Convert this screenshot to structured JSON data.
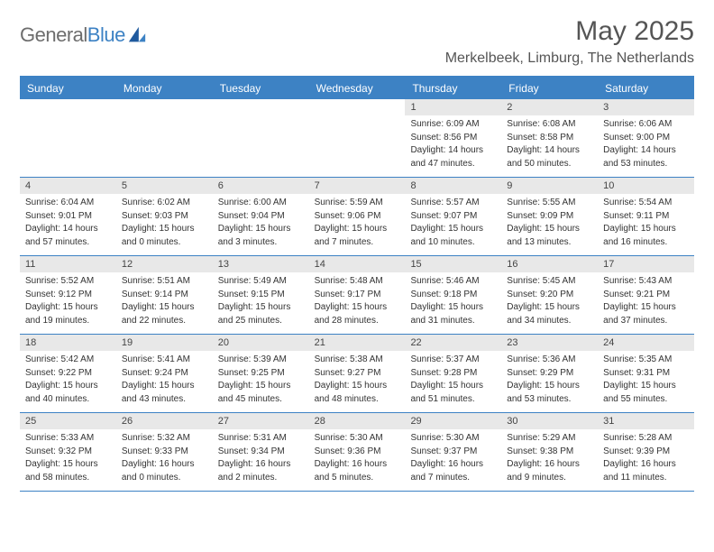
{
  "brand": {
    "name_a": "General",
    "name_b": "Blue"
  },
  "header": {
    "month_title": "May 2025",
    "location": "Merkelbeek, Limburg, The Netherlands"
  },
  "weekdays": [
    "Sunday",
    "Monday",
    "Tuesday",
    "Wednesday",
    "Thursday",
    "Friday",
    "Saturday"
  ],
  "colors": {
    "accent": "#3d82c4",
    "daynum_bg": "#e8e8e8",
    "text": "#333333",
    "muted": "#555555"
  },
  "weeks": [
    [
      {
        "day": "",
        "sunrise": "",
        "sunset": "",
        "dl1": "",
        "dl2": ""
      },
      {
        "day": "",
        "sunrise": "",
        "sunset": "",
        "dl1": "",
        "dl2": ""
      },
      {
        "day": "",
        "sunrise": "",
        "sunset": "",
        "dl1": "",
        "dl2": ""
      },
      {
        "day": "",
        "sunrise": "",
        "sunset": "",
        "dl1": "",
        "dl2": ""
      },
      {
        "day": "1",
        "sunrise": "Sunrise: 6:09 AM",
        "sunset": "Sunset: 8:56 PM",
        "dl1": "Daylight: 14 hours",
        "dl2": "and 47 minutes."
      },
      {
        "day": "2",
        "sunrise": "Sunrise: 6:08 AM",
        "sunset": "Sunset: 8:58 PM",
        "dl1": "Daylight: 14 hours",
        "dl2": "and 50 minutes."
      },
      {
        "day": "3",
        "sunrise": "Sunrise: 6:06 AM",
        "sunset": "Sunset: 9:00 PM",
        "dl1": "Daylight: 14 hours",
        "dl2": "and 53 minutes."
      }
    ],
    [
      {
        "day": "4",
        "sunrise": "Sunrise: 6:04 AM",
        "sunset": "Sunset: 9:01 PM",
        "dl1": "Daylight: 14 hours",
        "dl2": "and 57 minutes."
      },
      {
        "day": "5",
        "sunrise": "Sunrise: 6:02 AM",
        "sunset": "Sunset: 9:03 PM",
        "dl1": "Daylight: 15 hours",
        "dl2": "and 0 minutes."
      },
      {
        "day": "6",
        "sunrise": "Sunrise: 6:00 AM",
        "sunset": "Sunset: 9:04 PM",
        "dl1": "Daylight: 15 hours",
        "dl2": "and 3 minutes."
      },
      {
        "day": "7",
        "sunrise": "Sunrise: 5:59 AM",
        "sunset": "Sunset: 9:06 PM",
        "dl1": "Daylight: 15 hours",
        "dl2": "and 7 minutes."
      },
      {
        "day": "8",
        "sunrise": "Sunrise: 5:57 AM",
        "sunset": "Sunset: 9:07 PM",
        "dl1": "Daylight: 15 hours",
        "dl2": "and 10 minutes."
      },
      {
        "day": "9",
        "sunrise": "Sunrise: 5:55 AM",
        "sunset": "Sunset: 9:09 PM",
        "dl1": "Daylight: 15 hours",
        "dl2": "and 13 minutes."
      },
      {
        "day": "10",
        "sunrise": "Sunrise: 5:54 AM",
        "sunset": "Sunset: 9:11 PM",
        "dl1": "Daylight: 15 hours",
        "dl2": "and 16 minutes."
      }
    ],
    [
      {
        "day": "11",
        "sunrise": "Sunrise: 5:52 AM",
        "sunset": "Sunset: 9:12 PM",
        "dl1": "Daylight: 15 hours",
        "dl2": "and 19 minutes."
      },
      {
        "day": "12",
        "sunrise": "Sunrise: 5:51 AM",
        "sunset": "Sunset: 9:14 PM",
        "dl1": "Daylight: 15 hours",
        "dl2": "and 22 minutes."
      },
      {
        "day": "13",
        "sunrise": "Sunrise: 5:49 AM",
        "sunset": "Sunset: 9:15 PM",
        "dl1": "Daylight: 15 hours",
        "dl2": "and 25 minutes."
      },
      {
        "day": "14",
        "sunrise": "Sunrise: 5:48 AM",
        "sunset": "Sunset: 9:17 PM",
        "dl1": "Daylight: 15 hours",
        "dl2": "and 28 minutes."
      },
      {
        "day": "15",
        "sunrise": "Sunrise: 5:46 AM",
        "sunset": "Sunset: 9:18 PM",
        "dl1": "Daylight: 15 hours",
        "dl2": "and 31 minutes."
      },
      {
        "day": "16",
        "sunrise": "Sunrise: 5:45 AM",
        "sunset": "Sunset: 9:20 PM",
        "dl1": "Daylight: 15 hours",
        "dl2": "and 34 minutes."
      },
      {
        "day": "17",
        "sunrise": "Sunrise: 5:43 AM",
        "sunset": "Sunset: 9:21 PM",
        "dl1": "Daylight: 15 hours",
        "dl2": "and 37 minutes."
      }
    ],
    [
      {
        "day": "18",
        "sunrise": "Sunrise: 5:42 AM",
        "sunset": "Sunset: 9:22 PM",
        "dl1": "Daylight: 15 hours",
        "dl2": "and 40 minutes."
      },
      {
        "day": "19",
        "sunrise": "Sunrise: 5:41 AM",
        "sunset": "Sunset: 9:24 PM",
        "dl1": "Daylight: 15 hours",
        "dl2": "and 43 minutes."
      },
      {
        "day": "20",
        "sunrise": "Sunrise: 5:39 AM",
        "sunset": "Sunset: 9:25 PM",
        "dl1": "Daylight: 15 hours",
        "dl2": "and 45 minutes."
      },
      {
        "day": "21",
        "sunrise": "Sunrise: 5:38 AM",
        "sunset": "Sunset: 9:27 PM",
        "dl1": "Daylight: 15 hours",
        "dl2": "and 48 minutes."
      },
      {
        "day": "22",
        "sunrise": "Sunrise: 5:37 AM",
        "sunset": "Sunset: 9:28 PM",
        "dl1": "Daylight: 15 hours",
        "dl2": "and 51 minutes."
      },
      {
        "day": "23",
        "sunrise": "Sunrise: 5:36 AM",
        "sunset": "Sunset: 9:29 PM",
        "dl1": "Daylight: 15 hours",
        "dl2": "and 53 minutes."
      },
      {
        "day": "24",
        "sunrise": "Sunrise: 5:35 AM",
        "sunset": "Sunset: 9:31 PM",
        "dl1": "Daylight: 15 hours",
        "dl2": "and 55 minutes."
      }
    ],
    [
      {
        "day": "25",
        "sunrise": "Sunrise: 5:33 AM",
        "sunset": "Sunset: 9:32 PM",
        "dl1": "Daylight: 15 hours",
        "dl2": "and 58 minutes."
      },
      {
        "day": "26",
        "sunrise": "Sunrise: 5:32 AM",
        "sunset": "Sunset: 9:33 PM",
        "dl1": "Daylight: 16 hours",
        "dl2": "and 0 minutes."
      },
      {
        "day": "27",
        "sunrise": "Sunrise: 5:31 AM",
        "sunset": "Sunset: 9:34 PM",
        "dl1": "Daylight: 16 hours",
        "dl2": "and 2 minutes."
      },
      {
        "day": "28",
        "sunrise": "Sunrise: 5:30 AM",
        "sunset": "Sunset: 9:36 PM",
        "dl1": "Daylight: 16 hours",
        "dl2": "and 5 minutes."
      },
      {
        "day": "29",
        "sunrise": "Sunrise: 5:30 AM",
        "sunset": "Sunset: 9:37 PM",
        "dl1": "Daylight: 16 hours",
        "dl2": "and 7 minutes."
      },
      {
        "day": "30",
        "sunrise": "Sunrise: 5:29 AM",
        "sunset": "Sunset: 9:38 PM",
        "dl1": "Daylight: 16 hours",
        "dl2": "and 9 minutes."
      },
      {
        "day": "31",
        "sunrise": "Sunrise: 5:28 AM",
        "sunset": "Sunset: 9:39 PM",
        "dl1": "Daylight: 16 hours",
        "dl2": "and 11 minutes."
      }
    ]
  ]
}
